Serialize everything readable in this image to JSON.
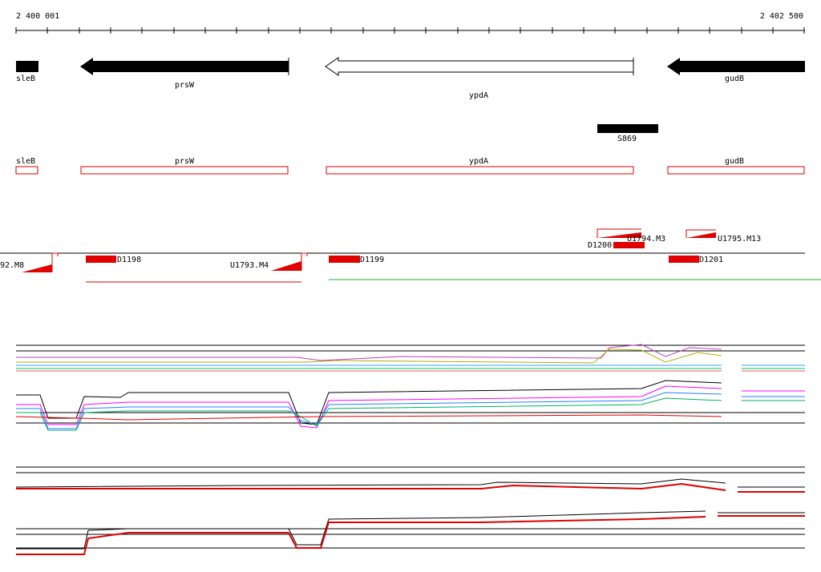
{
  "ruler": {
    "start": "2 400 001",
    "end": "2 402 500"
  },
  "genes": [
    {
      "label": "sleB"
    },
    {
      "label": "prsW"
    },
    {
      "label": "ypdA"
    },
    {
      "label": "gudB"
    }
  ],
  "gene_boxes": [
    {
      "label": "sleB"
    },
    {
      "label": "prsW"
    },
    {
      "label": "ypdA"
    },
    {
      "label": "gudB"
    }
  ],
  "feature": {
    "label": "S869"
  },
  "segments": [
    {
      "label": "92.M8"
    },
    {
      "label": "D1198"
    },
    {
      "label": "U1793.M4"
    },
    {
      "label": "D1199"
    },
    {
      "label": "D1200"
    },
    {
      "label": "U1794.M3"
    },
    {
      "label": "U1795.M13"
    },
    {
      "label": "D1201"
    }
  ]
}
